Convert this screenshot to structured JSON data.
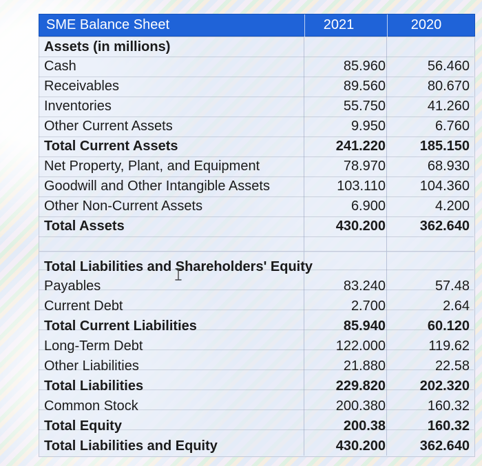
{
  "header": {
    "title": "SME Balance Sheet",
    "col_2021": "2021",
    "col_2020": "2020"
  },
  "assets": {
    "section_title": "Assets (in millions)",
    "rows": [
      {
        "label": "Cash",
        "v2021": "85.960",
        "v2020": "56.460",
        "bold": false
      },
      {
        "label": "Receivables",
        "v2021": "89.560",
        "v2020": "80.670",
        "bold": false
      },
      {
        "label": "Inventories",
        "v2021": "55.750",
        "v2020": "41.260",
        "bold": false
      },
      {
        "label": "Other Current Assets",
        "v2021": "9.950",
        "v2020": "6.760",
        "bold": false
      },
      {
        "label": "Total Current Assets",
        "v2021": "241.220",
        "v2020": "185.150",
        "bold": true
      },
      {
        "label": "Net Property, Plant, and Equipment",
        "v2021": "78.970",
        "v2020": "68.930",
        "bold": false
      },
      {
        "label": "Goodwill and Other Intangible Assets",
        "v2021": "103.110",
        "v2020": "104.360",
        "bold": false
      },
      {
        "label": "Other Non-Current Assets",
        "v2021": "6.900",
        "v2020": "4.200",
        "bold": false
      },
      {
        "label": "Total Assets",
        "v2021": "430.200",
        "v2020": "362.640",
        "bold": true
      }
    ]
  },
  "liabilities": {
    "section_title": "Total Liabilities and Shareholders' Equity",
    "rows": [
      {
        "label": "Payables",
        "v2021": "83.240",
        "v2020": "57.48",
        "bold": false
      },
      {
        "label": "Current Debt",
        "v2021": "2.700",
        "v2020": "2.64",
        "bold": false
      },
      {
        "label": "Total Current Liabilities",
        "v2021": "85.940",
        "v2020": "60.120",
        "bold": true
      },
      {
        "label": "Long-Term Debt",
        "v2021": "122.000",
        "v2020": "119.62",
        "bold": false
      },
      {
        "label": "Other Liabilities",
        "v2021": "21.880",
        "v2020": "22.58",
        "bold": false
      },
      {
        "label": "Total Liabilities",
        "v2021": "229.820",
        "v2020": "202.320",
        "bold": true
      },
      {
        "label": "Common Stock",
        "v2021": "200.380",
        "v2020": "160.32",
        "bold": false
      },
      {
        "label": "Total Equity",
        "v2021": "200.38",
        "v2020": "160.32",
        "bold": true
      },
      {
        "label": "Total Liabilities and Equity",
        "v2021": "430.200",
        "v2020": "362.640",
        "bold": true
      }
    ]
  },
  "cursor_icon": "text-cursor-icon"
}
